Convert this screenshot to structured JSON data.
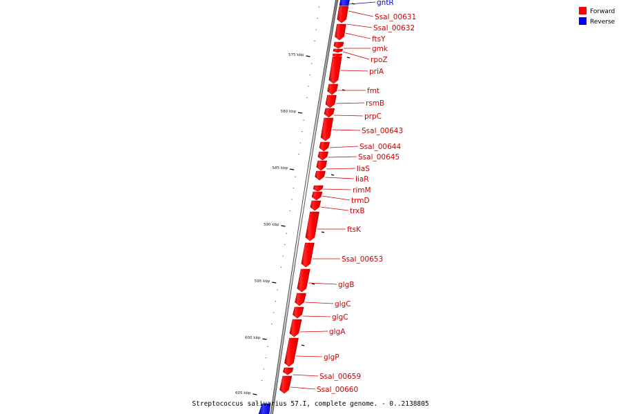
{
  "legend": [
    {
      "label": "Forward",
      "color": "#ff0000"
    },
    {
      "label": "Reverse",
      "color": "#0000ff"
    }
  ],
  "caption": "Streptococcus salivarius 57.I, complete genome. - 0..2138805",
  "axis_ticks": [
    "575 kbp",
    "580 kbp",
    "585 kbp",
    "590 kbp",
    "595 kbp",
    "600 kbp",
    "605 kbp"
  ],
  "genes": [
    {
      "name": "gntR",
      "strand": "reverse"
    },
    {
      "name": "Ssal_00631",
      "strand": "forward"
    },
    {
      "name": "Ssal_00632",
      "strand": "forward"
    },
    {
      "name": "ftsY",
      "strand": "forward"
    },
    {
      "name": "gmk",
      "strand": "forward"
    },
    {
      "name": "rpoZ",
      "strand": "forward"
    },
    {
      "name": "priA",
      "strand": "forward"
    },
    {
      "name": "fmt",
      "strand": "forward"
    },
    {
      "name": "rsmB",
      "strand": "forward"
    },
    {
      "name": "prpC",
      "strand": "forward"
    },
    {
      "name": "Ssal_00643",
      "strand": "forward"
    },
    {
      "name": "Ssal_00644",
      "strand": "forward"
    },
    {
      "name": "Ssal_00645",
      "strand": "forward"
    },
    {
      "name": "liaS",
      "strand": "forward"
    },
    {
      "name": "liaR",
      "strand": "forward"
    },
    {
      "name": "rimM",
      "strand": "forward"
    },
    {
      "name": "trmD",
      "strand": "forward"
    },
    {
      "name": "trxB",
      "strand": "forward"
    },
    {
      "name": "ftsK",
      "strand": "forward"
    },
    {
      "name": "Ssal_00653",
      "strand": "forward"
    },
    {
      "name": "glgB",
      "strand": "forward"
    },
    {
      "name": "glgC",
      "strand": "forward"
    },
    {
      "name": "glgC",
      "strand": "forward"
    },
    {
      "name": "glgA",
      "strand": "forward"
    },
    {
      "name": "glgP",
      "strand": "forward"
    },
    {
      "name": "Ssal_00659",
      "strand": "forward"
    },
    {
      "name": "Ssal_00660",
      "strand": "forward"
    }
  ]
}
